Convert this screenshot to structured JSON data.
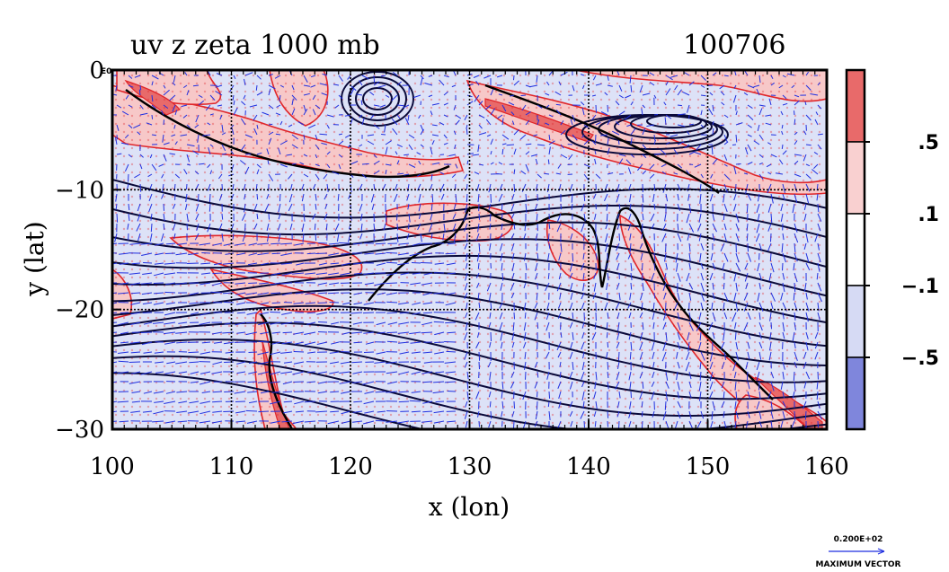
{
  "chart_data": {
    "type": "heatmap",
    "title_left": "uv z zeta 1000 mb",
    "title_right": "100706",
    "xlabel": "x (lon)",
    "ylabel": "y (lat)",
    "xlim": [
      100,
      160
    ],
    "ylim": [
      -30,
      0
    ],
    "x_ticks": [
      100,
      110,
      120,
      130,
      140,
      150,
      160
    ],
    "x_tick_labels": [
      "100",
      "110",
      "120",
      "130",
      "140",
      "150",
      "160"
    ],
    "y_ticks": [
      0,
      -10,
      -20,
      -30
    ],
    "y_tick_labels": [
      "0",
      "−10",
      "−20",
      "−30"
    ],
    "y_top_suffix": "E0",
    "grid": true,
    "fields": [
      "uv wind vectors",
      "z geopotential contours",
      "zeta vorticity shading"
    ],
    "colorbar": {
      "labels": [
        ".5",
        ".1",
        "−.1",
        "−.5"
      ],
      "colors": [
        "#e86a6a",
        "#f9d0d0",
        "#ffffff",
        "#d6daf4",
        "#7f86dc"
      ]
    },
    "vector_key": {
      "value": "0.200E+02",
      "label": "MAXIMUM VECTOR"
    },
    "colors": {
      "vectors": "#1f2fe0",
      "contours": "#0a0a3a",
      "zeta_positive": "#e0262a",
      "zeta_negative_fill": "#dde2f7"
    }
  }
}
